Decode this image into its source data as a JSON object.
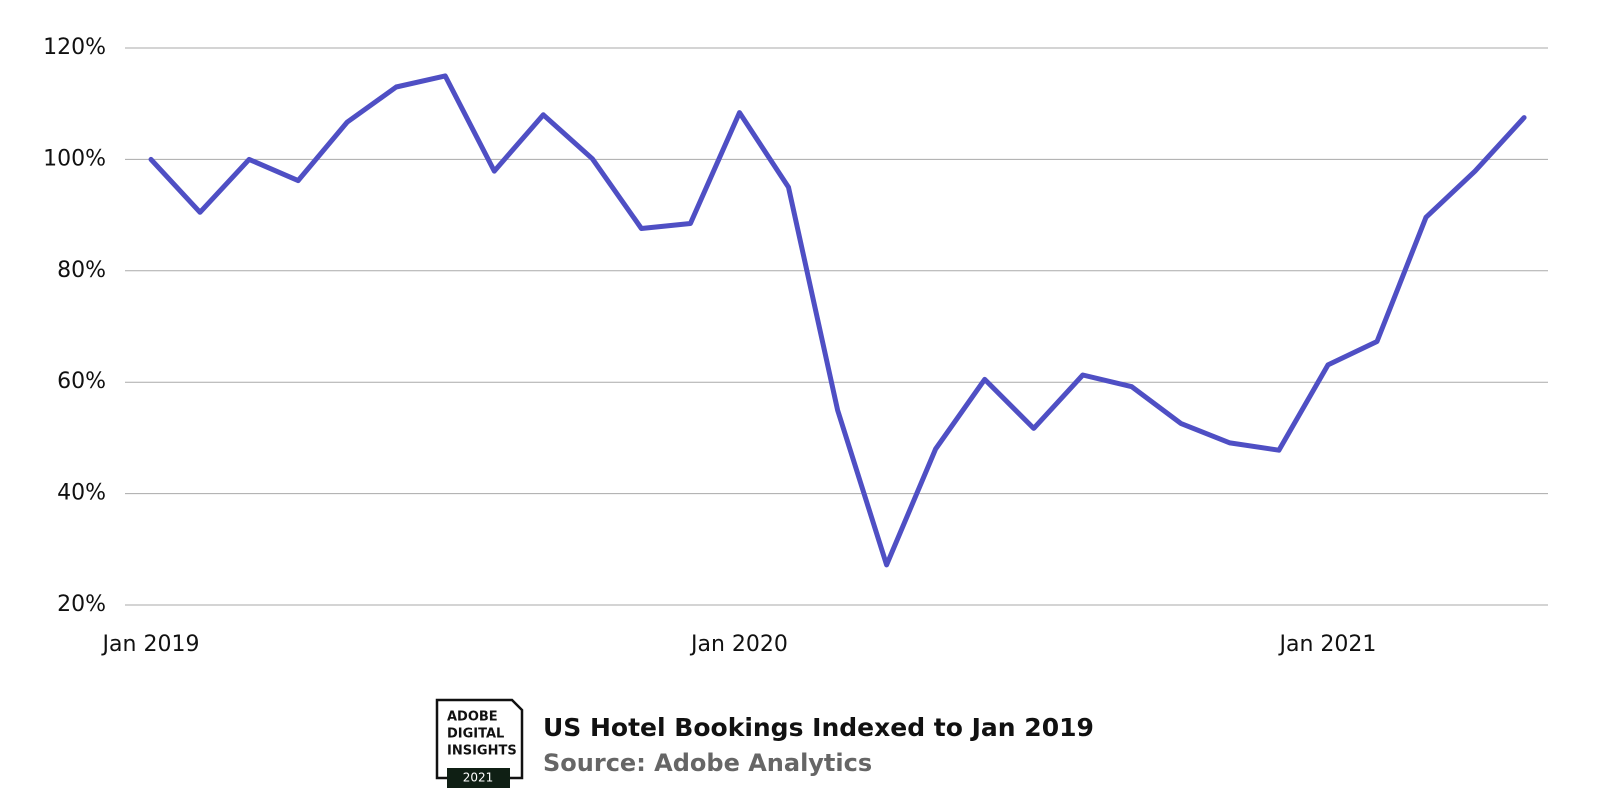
{
  "chart_data": {
    "type": "line",
    "title": "US Hotel Bookings Indexed to Jan 2019",
    "source": "Source: Adobe Analytics",
    "logo": {
      "lines": [
        "ADOBE",
        "DIGITAL",
        "INSIGHTS"
      ],
      "year": "2021"
    },
    "categories": [
      "Jan 2019",
      null,
      null,
      null,
      null,
      null,
      null,
      null,
      null,
      null,
      null,
      null,
      "Jan 2020",
      null,
      null,
      null,
      null,
      null,
      null,
      null,
      null,
      null,
      null,
      null,
      "Jan 2021",
      null,
      null,
      null,
      null
    ],
    "values": [
      100,
      90.5,
      100,
      96.2,
      106.7,
      113,
      115,
      97.9,
      108,
      100.1,
      87.6,
      88.5,
      108.4,
      95,
      55,
      27.2,
      48,
      60.5,
      51.7,
      61.3,
      59.2,
      52.6,
      49.1,
      47.8,
      63.1,
      67.3,
      89.6,
      97.9,
      107.5
    ],
    "color": "#4f4fc4",
    "ylim": [
      20,
      120
    ],
    "yticks": [
      {
        "value": 20,
        "label": "20%"
      },
      {
        "value": 40,
        "label": "40%"
      },
      {
        "value": 60,
        "label": "60%"
      },
      {
        "value": 80,
        "label": "80%"
      },
      {
        "value": 100,
        "label": "100%"
      },
      {
        "value": 120,
        "label": "120%"
      }
    ],
    "grid": true
  }
}
